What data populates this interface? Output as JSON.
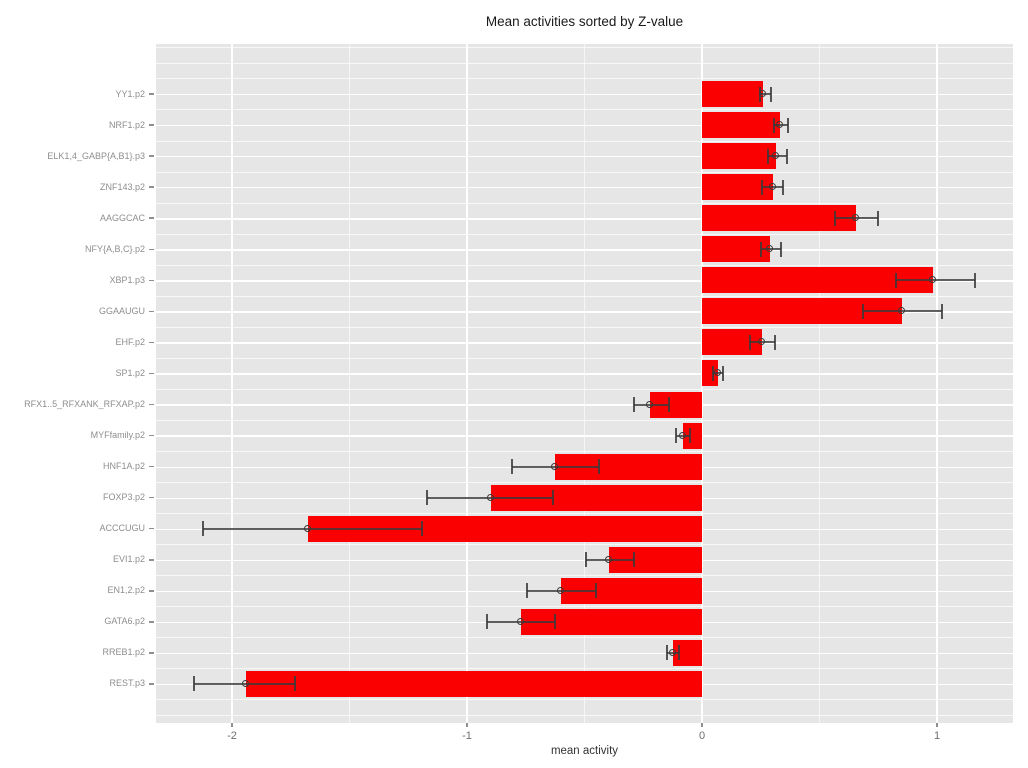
{
  "title": "Mean activities sorted by Z-value",
  "chart_data": {
    "type": "bar",
    "orientation": "horizontal",
    "title": "Mean activities sorted by Z-value",
    "xlabel": "mean activity",
    "ylabel": "",
    "legend": "none",
    "grid": true,
    "sort_note": "sorted by Z-value, positive at top",
    "categories": [
      "YY1.p2",
      "NRF1.p2",
      "ELK1,4_GABP{A,B1}.p3",
      "ZNF143.p2",
      "AAGGCAC",
      "NFY{A,B,C}.p2",
      "XBP1.p3",
      "GGAAUGU",
      "EHF.p2",
      "SP1.p2",
      "RFX1..5_RFXANK_RFXAP.p2",
      "MYFfamily.p2",
      "HNF1A.p2",
      "FOXP3.p2",
      "ACCCUGU",
      "EVI1.p2",
      "EN1,2.p2",
      "GATA6.p2",
      "RREB1.p2",
      "REST.p3"
    ],
    "values": [
      0.26,
      0.33,
      0.315,
      0.3,
      0.655,
      0.29,
      0.985,
      0.85,
      0.255,
      0.067,
      -0.22,
      -0.08,
      -0.625,
      -0.9,
      -1.675,
      -0.395,
      -0.6,
      -0.77,
      -0.125,
      -1.94
    ],
    "error_low": [
      0.245,
      0.305,
      0.28,
      0.255,
      0.565,
      0.25,
      0.825,
      0.685,
      0.205,
      0.048,
      -0.29,
      -0.11,
      -0.81,
      -1.17,
      -2.125,
      -0.495,
      -0.745,
      -0.915,
      -0.15,
      -2.16
    ],
    "error_high": [
      0.295,
      0.365,
      0.36,
      0.345,
      0.75,
      0.335,
      1.16,
      1.02,
      0.31,
      0.09,
      -0.14,
      -0.05,
      -0.44,
      -0.635,
      -1.19,
      -0.29,
      -0.45,
      -0.625,
      -0.1,
      -1.73
    ],
    "x_ticks": [
      -2,
      -1,
      0,
      1
    ],
    "x_tick_labels": [
      "-2",
      "-1",
      "0",
      "1"
    ],
    "x_minor_ticks": [
      -1.5,
      -0.5,
      0.5
    ],
    "xlim": [
      -2.32,
      1.32
    ],
    "colors": {
      "bar": "#fb0000",
      "errorbar": "#3a3a3a",
      "panel_background": "#e6e6e6",
      "gridline": "#ffffff",
      "axis_text": "#8e8e8e",
      "tick_text": "#6e6e6e",
      "title_text": "#1a1a1a"
    }
  }
}
